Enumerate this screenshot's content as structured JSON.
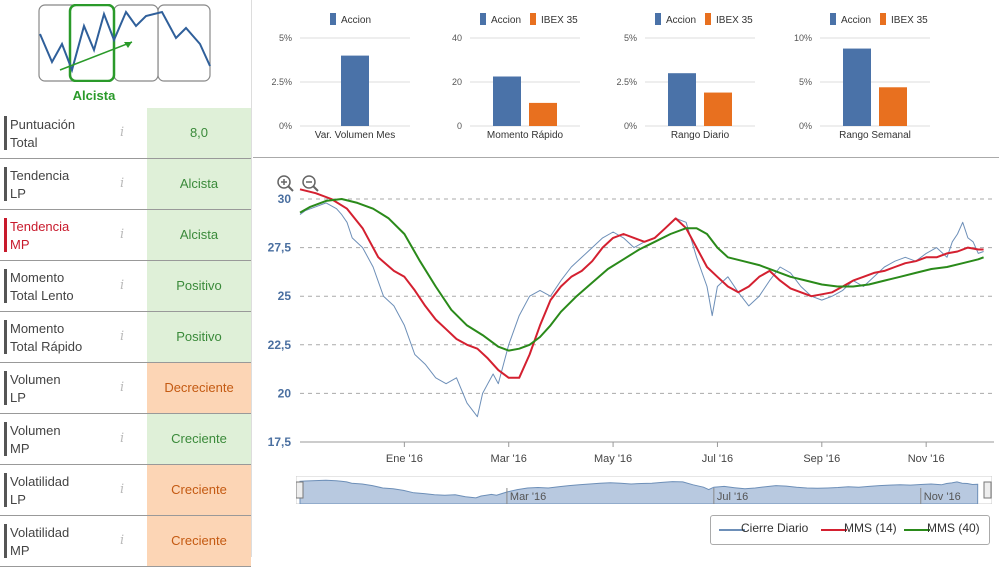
{
  "trend_selector": {
    "label": "Alcista"
  },
  "left_table": [
    {
      "line1": "Puntuación",
      "line2": "Total",
      "value": "8,0",
      "style": "green",
      "active": false
    },
    {
      "line1": "Tendencia",
      "line2": "LP",
      "value": "Alcista",
      "style": "green",
      "active": false
    },
    {
      "line1": "Tendencia",
      "line2": "MP",
      "value": "Alcista",
      "style": "green",
      "active": true
    },
    {
      "line1": "Momento",
      "line2": "Total Lento",
      "value": "Positivo",
      "style": "green",
      "active": false
    },
    {
      "line1": "Momento",
      "line2": "Total Rápido",
      "value": "Positivo",
      "style": "green",
      "active": false
    },
    {
      "line1": "Volumen",
      "line2": "LP",
      "value": "Decreciente",
      "style": "orange",
      "active": false
    },
    {
      "line1": "Volumen",
      "line2": "MP",
      "value": "Creciente",
      "style": "green",
      "active": false
    },
    {
      "line1": "Volatilidad",
      "line2": "LP",
      "value": "Creciente",
      "style": "orange",
      "active": false
    },
    {
      "line1": "Volatilidad",
      "line2": "MP",
      "value": "Creciente",
      "style": "orange",
      "active": false
    }
  ],
  "info_glyph": "i",
  "colors": {
    "accion": "#4a72a8",
    "ibex": "#e8701f",
    "cierre": "#6d8fb8",
    "mms14": "#d42030",
    "mms40": "#2a8a1a"
  },
  "chart_data": [
    {
      "type": "bar",
      "title": "Var. Volumen Mes",
      "legend": [
        "Accion"
      ],
      "yticks": [
        "5%",
        "2.5%",
        "0%"
      ],
      "ylim": [
        0,
        5
      ],
      "values": [
        4.0
      ]
    },
    {
      "type": "bar",
      "title": "Momento Rápido",
      "legend": [
        "Accion",
        "IBEX 35"
      ],
      "yticks": [
        "40",
        "20",
        "0"
      ],
      "ylim": [
        0,
        40
      ],
      "values": [
        22.5,
        10.5
      ]
    },
    {
      "type": "bar",
      "title": "Rango Diario",
      "legend": [
        "Accion",
        "IBEX 35"
      ],
      "yticks": [
        "5%",
        "2.5%",
        "0%"
      ],
      "ylim": [
        0,
        5
      ],
      "values": [
        3.0,
        1.9
      ]
    },
    {
      "type": "bar",
      "title": "Rango Semanal",
      "legend": [
        "Accion",
        "IBEX 35"
      ],
      "yticks": [
        "10%",
        "5%",
        "0%"
      ],
      "ylim": [
        0,
        10
      ],
      "values": [
        8.8,
        4.4
      ]
    },
    {
      "type": "line",
      "yticks": [
        "30",
        "27,5",
        "25",
        "22,5",
        "20",
        "17,5"
      ],
      "ylim": [
        17.5,
        30
      ],
      "xlim": [
        0,
        13.3
      ],
      "xticks": [
        {
          "label": "Ene '16",
          "x": 2
        },
        {
          "label": "Mar '16",
          "x": 4
        },
        {
          "label": "May '16",
          "x": 6
        },
        {
          "label": "Jul '16",
          "x": 8
        },
        {
          "label": "Sep '16",
          "x": 10
        },
        {
          "label": "Nov '16",
          "x": 12
        }
      ],
      "series": [
        {
          "name": "Cierre Diario",
          "x": [
            0,
            0.1,
            0.3,
            0.5,
            0.7,
            0.8,
            0.9,
            1.0,
            1.2,
            1.4,
            1.6,
            1.8,
            2.0,
            2.2,
            2.4,
            2.6,
            2.8,
            3.0,
            3.2,
            3.4,
            3.5,
            3.6,
            3.7,
            3.8,
            3.9,
            4.0,
            4.2,
            4.4,
            4.6,
            4.8,
            5.0,
            5.2,
            5.4,
            5.6,
            5.8,
            6.0,
            6.2,
            6.4,
            6.6,
            6.8,
            7.0,
            7.2,
            7.4,
            7.6,
            7.8,
            7.9,
            8.0,
            8.2,
            8.4,
            8.6,
            8.8,
            9.0,
            9.2,
            9.4,
            9.6,
            9.8,
            10.0,
            10.2,
            10.4,
            10.6,
            10.8,
            11.0,
            11.2,
            11.4,
            11.6,
            11.8,
            12.0,
            12.2,
            12.4,
            12.5,
            12.6,
            12.7,
            12.8,
            12.9,
            13.0,
            13.1
          ],
          "y": [
            29.2,
            29.4,
            29.6,
            29.8,
            29.5,
            29.2,
            28.8,
            28.0,
            27.5,
            26.5,
            25.0,
            24.5,
            23.5,
            22.0,
            21.5,
            20.8,
            20.5,
            20.8,
            19.5,
            18.8,
            20.0,
            20.5,
            21.0,
            20.5,
            21.5,
            22.5,
            24.0,
            25.0,
            25.3,
            25.0,
            25.8,
            26.5,
            27.0,
            27.5,
            28.0,
            28.3,
            28.0,
            27.5,
            27.8,
            28.0,
            28.5,
            29.0,
            28.8,
            27.0,
            25.5,
            24.0,
            25.5,
            26.0,
            25.2,
            24.5,
            25.0,
            25.8,
            26.5,
            26.2,
            25.5,
            25.0,
            24.8,
            25.0,
            25.3,
            25.8,
            25.5,
            26.0,
            26.5,
            26.8,
            27.0,
            26.8,
            27.2,
            27.5,
            27.0,
            27.8,
            28.2,
            28.8,
            28.0,
            27.8,
            27.2,
            27.3
          ]
        },
        {
          "name": "MMS (14)",
          "x": [
            0,
            0.3,
            0.6,
            0.9,
            1.2,
            1.5,
            1.8,
            2.0,
            2.2,
            2.4,
            2.6,
            2.8,
            3.0,
            3.2,
            3.4,
            3.6,
            3.8,
            4.0,
            4.2,
            4.4,
            4.6,
            4.8,
            5.0,
            5.2,
            5.4,
            5.6,
            5.8,
            6.0,
            6.2,
            6.4,
            6.6,
            6.8,
            7.0,
            7.2,
            7.4,
            7.6,
            7.8,
            8.0,
            8.2,
            8.4,
            8.6,
            8.8,
            9.0,
            9.2,
            9.4,
            9.6,
            9.8,
            10.0,
            10.2,
            10.4,
            10.6,
            10.8,
            11.0,
            11.2,
            11.4,
            11.6,
            11.8,
            12.0,
            12.2,
            12.4,
            12.6,
            12.8,
            13.0,
            13.1
          ],
          "y": [
            30.5,
            30.3,
            30.0,
            29.5,
            28.5,
            27.0,
            26.3,
            26.0,
            25.3,
            24.5,
            23.8,
            23.3,
            22.8,
            22.5,
            22.3,
            21.8,
            21.2,
            20.8,
            20.8,
            22.0,
            23.5,
            24.8,
            25.5,
            26.0,
            26.3,
            26.8,
            27.5,
            28.0,
            28.2,
            28.0,
            27.8,
            28.0,
            28.5,
            29.0,
            28.5,
            27.5,
            26.5,
            26.0,
            25.5,
            25.2,
            25.5,
            26.0,
            26.3,
            25.8,
            25.4,
            25.2,
            25.0,
            25.1,
            25.2,
            25.5,
            25.8,
            26.0,
            26.2,
            26.3,
            26.5,
            26.7,
            26.8,
            27.0,
            27.0,
            27.2,
            27.3,
            27.5,
            27.4,
            27.4
          ]
        },
        {
          "name": "MMS (40)",
          "x": [
            0,
            0.2,
            0.5,
            0.8,
            1.1,
            1.4,
            1.7,
            2.0,
            2.3,
            2.6,
            2.9,
            3.2,
            3.5,
            3.8,
            4.0,
            4.2,
            4.4,
            4.6,
            4.8,
            5.0,
            5.3,
            5.6,
            5.9,
            6.2,
            6.5,
            6.8,
            7.1,
            7.4,
            7.6,
            7.8,
            8.0,
            8.2,
            8.5,
            8.8,
            9.1,
            9.4,
            9.7,
            10.0,
            10.3,
            10.6,
            10.9,
            11.2,
            11.5,
            11.8,
            12.1,
            12.4,
            12.7,
            13.0,
            13.1
          ],
          "y": [
            29.3,
            29.6,
            29.9,
            30.0,
            29.8,
            29.5,
            29.0,
            28.2,
            26.8,
            25.5,
            24.3,
            23.5,
            23.0,
            22.4,
            22.2,
            22.3,
            22.5,
            22.9,
            23.5,
            24.2,
            25.0,
            25.7,
            26.4,
            26.9,
            27.4,
            27.8,
            28.2,
            28.5,
            28.5,
            28.2,
            27.5,
            27.0,
            26.8,
            26.6,
            26.3,
            26.0,
            25.8,
            25.6,
            25.5,
            25.5,
            25.6,
            25.8,
            26.0,
            26.2,
            26.4,
            26.5,
            26.7,
            26.9,
            27.0
          ]
        }
      ],
      "legend": [
        "Cierre Diario",
        "MMS (14)",
        "MMS (40)"
      ]
    }
  ],
  "navigator": {
    "labels": [
      "Mar '16",
      "Jul '16",
      "Nov '16"
    ]
  }
}
